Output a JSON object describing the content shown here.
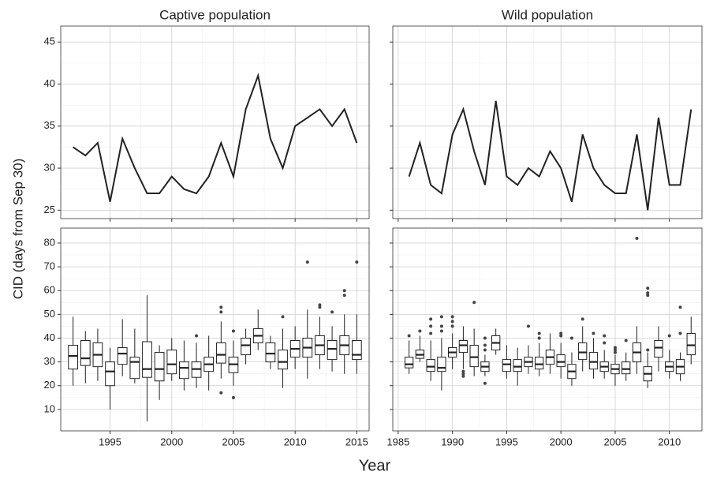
{
  "ylabel": "CID (days from Sep 30)",
  "xlabel": "Year",
  "chart_data": [
    {
      "type": "line",
      "title": "Captive population",
      "x": [
        1992,
        1993,
        1994,
        1995,
        1996,
        1997,
        1998,
        1999,
        2000,
        2001,
        2002,
        2003,
        2004,
        2005,
        2006,
        2007,
        2008,
        2009,
        2010,
        2011,
        2012,
        2013,
        2014,
        2015
      ],
      "values": [
        32.5,
        31.5,
        33,
        26,
        33.5,
        30,
        27,
        27,
        29,
        27.5,
        27,
        29,
        33,
        29,
        37,
        41,
        33.5,
        30,
        35,
        36,
        37,
        35,
        37,
        33
      ],
      "color": "#222222",
      "xlim": [
        1991,
        2016
      ],
      "xticks": [
        1995,
        2000,
        2005,
        2010,
        2015
      ],
      "ylim": [
        24,
        46.9
      ],
      "yticks": [
        25,
        30,
        35,
        40,
        45
      ],
      "grid": true
    },
    {
      "type": "line",
      "title": "Wild population",
      "x": [
        1986,
        1987,
        1988,
        1989,
        1990,
        1991,
        1992,
        1993,
        1994,
        1995,
        1996,
        1997,
        1998,
        1999,
        2000,
        2001,
        2002,
        2003,
        2004,
        2005,
        2006,
        2007,
        2008,
        2009,
        2010,
        2011,
        2012
      ],
      "values": [
        29,
        33,
        28,
        27,
        34,
        37,
        32,
        28,
        38,
        29,
        28,
        30,
        29,
        32,
        30,
        26,
        34,
        30,
        28,
        27,
        27,
        34,
        25,
        36,
        28,
        28,
        37
      ],
      "color": "#222222",
      "xlim": [
        1984.5,
        2013
      ],
      "xticks": [
        1985,
        1990,
        1995,
        2000,
        2005,
        2010
      ],
      "ylim": [
        24,
        46.9
      ],
      "yticks": [
        25,
        30,
        35,
        40,
        45
      ],
      "grid": true
    },
    {
      "type": "box",
      "x": [
        1992,
        1993,
        1994,
        1995,
        1996,
        1997,
        1998,
        1999,
        2000,
        2001,
        2002,
        2003,
        2004,
        2005,
        2006,
        2007,
        2008,
        2009,
        2010,
        2011,
        2012,
        2013,
        2014,
        2015
      ],
      "whisker_low": [
        20,
        21,
        22,
        10,
        24,
        21,
        5,
        14,
        22,
        18,
        19,
        18,
        23,
        20,
        29,
        35,
        27,
        19,
        27,
        23,
        27,
        26,
        25,
        25
      ],
      "q1": [
        27,
        28.5,
        28,
        20,
        29,
        23,
        23.5,
        22,
        25,
        23,
        23.5,
        26,
        29.5,
        25.5,
        33,
        38,
        30,
        27,
        32,
        32,
        33,
        31,
        33,
        31
      ],
      "median": [
        32.5,
        31.5,
        33,
        26,
        33.5,
        30,
        27,
        27,
        29,
        27.5,
        27,
        29,
        33,
        29,
        37,
        41,
        33.5,
        30,
        35.5,
        36,
        37,
        35.5,
        37,
        33
      ],
      "q3": [
        37,
        39,
        38,
        30,
        36,
        32,
        38.5,
        34,
        35,
        30,
        30,
        32,
        38,
        32,
        40,
        44,
        38,
        35,
        39,
        40,
        41,
        39,
        41,
        39
      ],
      "whisker_high": [
        49,
        43,
        44,
        36,
        48,
        44,
        58,
        37,
        40,
        39,
        38,
        41,
        47,
        39,
        44,
        52,
        41,
        44,
        45,
        52,
        49,
        45,
        50,
        50
      ],
      "outliers": [
        [],
        [],
        [],
        [],
        [],
        [],
        [],
        [],
        [],
        [],
        [
          41
        ],
        [],
        [
          53,
          51,
          17
        ],
        [
          43,
          15
        ],
        [],
        [],
        [],
        [
          49
        ],
        [],
        [
          72
        ],
        [
          54,
          53
        ],
        [
          51
        ],
        [
          60,
          58
        ],
        [
          72
        ]
      ],
      "color": "#222222",
      "xlim": [
        1991,
        2016
      ],
      "xticks": [
        1995,
        2000,
        2005,
        2010,
        2015
      ],
      "ylim": [
        1,
        86.3
      ],
      "yticks": [
        10,
        20,
        30,
        40,
        50,
        60,
        70,
        80
      ],
      "grid": true
    },
    {
      "type": "box",
      "x": [
        1986,
        1987,
        1988,
        1989,
        1990,
        1991,
        1992,
        1993,
        1994,
        1995,
        1996,
        1997,
        1998,
        1999,
        2000,
        2001,
        2002,
        2003,
        2004,
        2005,
        2006,
        2007,
        2008,
        2009,
        2010,
        2011,
        2012
      ],
      "whisker_low": [
        25,
        30,
        22,
        18,
        27,
        27,
        24,
        24,
        33,
        23,
        20,
        25,
        24,
        25,
        23,
        20,
        26,
        23,
        23,
        20,
        22,
        25,
        19,
        26,
        23,
        22,
        29
      ],
      "q1": [
        27.5,
        31.5,
        26,
        26,
        32,
        34,
        28,
        26,
        35,
        26,
        26,
        28,
        27,
        29,
        28,
        23,
        31,
        27,
        26,
        25,
        25,
        30,
        22,
        32,
        26,
        25,
        33
      ],
      "median": [
        29,
        33,
        28,
        27.5,
        34,
        37,
        32,
        28,
        38,
        29,
        28,
        30,
        29,
        32,
        30,
        26,
        34,
        30,
        28,
        27,
        27,
        34,
        25,
        36,
        28,
        28,
        37
      ],
      "q3": [
        32,
        35,
        31,
        32,
        36,
        39,
        37,
        30,
        41,
        31,
        31,
        32,
        32,
        35,
        33,
        29,
        38,
        34,
        30,
        29,
        30,
        38,
        28,
        39,
        30,
        31,
        42
      ],
      "whisker_high": [
        39,
        41,
        39,
        40,
        42,
        45,
        44,
        33,
        44,
        37,
        36,
        37,
        38,
        42,
        38,
        34,
        45,
        40,
        35,
        33,
        34,
        45,
        34,
        45,
        35,
        34,
        49
      ],
      "outliers": [
        [
          41
        ],
        [
          43
        ],
        [
          42,
          45,
          48
        ],
        [
          43,
          45,
          49
        ],
        [
          45,
          47,
          49
        ],
        [
          26,
          25,
          24
        ],
        [
          55
        ],
        [
          21,
          35,
          37,
          40
        ],
        [],
        [],
        [],
        [
          45
        ],
        [
          40,
          42
        ],
        [],
        [
          41,
          42
        ],
        [
          40
        ],
        [
          48
        ],
        [
          42
        ],
        [
          38,
          41
        ],
        [
          36,
          35,
          34
        ],
        [
          39
        ],
        [
          82
        ],
        [
          58,
          59,
          61,
          35
        ],
        [],
        [
          41
        ],
        [
          53,
          42
        ],
        []
      ],
      "color": "#222222",
      "xlim": [
        1984.5,
        2013
      ],
      "xticks": [
        1985,
        1990,
        1995,
        2000,
        2005,
        2010
      ],
      "ylim": [
        1,
        86.3
      ],
      "yticks": [
        10,
        20,
        30,
        40,
        50,
        60,
        70,
        80
      ],
      "grid": true
    }
  ]
}
